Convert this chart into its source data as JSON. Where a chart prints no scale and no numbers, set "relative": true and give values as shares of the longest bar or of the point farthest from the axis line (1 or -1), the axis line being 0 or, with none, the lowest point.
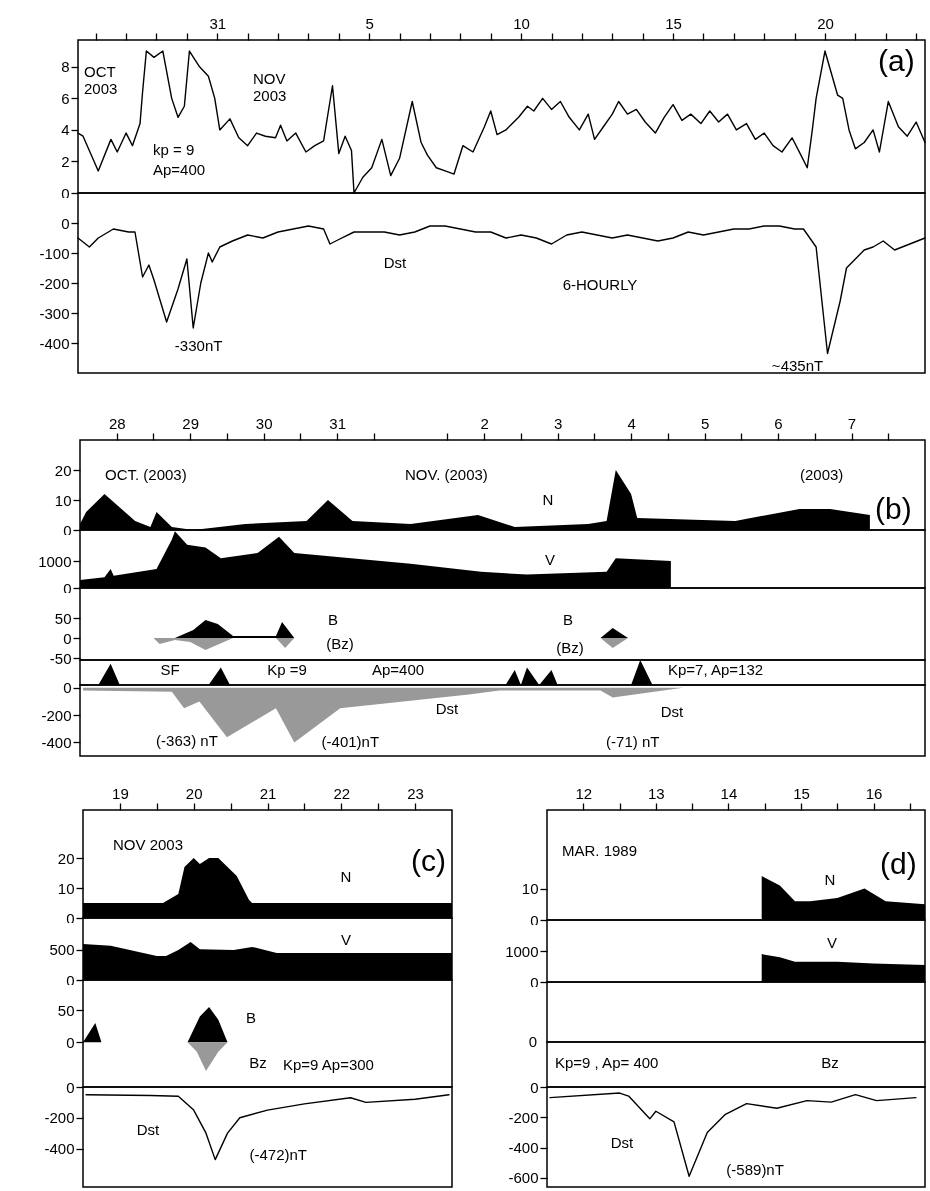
{
  "chart_data": [
    {
      "type": "line",
      "xlim": [
        "2003-10-26T10:00",
        "2003-11-23T07:00"
      ],
      "xticks": [
        {
          "value": "2003-10-27",
          "label": null
        },
        {
          "value": "2003-10-28",
          "label": null
        },
        {
          "value": "2003-10-29",
          "label": null
        },
        {
          "value": "2003-10-30",
          "label": null
        },
        {
          "value": "2003-10-31",
          "label": "31"
        },
        {
          "value": "2003-11-01",
          "label": null
        },
        {
          "value": "2003-11-02",
          "label": null
        },
        {
          "value": "2003-11-03",
          "label": null
        },
        {
          "value": "2003-11-04",
          "label": null
        },
        {
          "value": "2003-11-05",
          "label": "5"
        },
        {
          "value": "2003-11-06",
          "label": null
        },
        {
          "value": "2003-11-07",
          "label": null
        },
        {
          "value": "2003-11-08",
          "label": null
        },
        {
          "value": "2003-11-09",
          "label": null
        },
        {
          "value": "2003-11-10",
          "label": "10"
        },
        {
          "value": "2003-11-11",
          "label": null
        },
        {
          "value": "2003-11-12",
          "label": null
        },
        {
          "value": "2003-11-13",
          "label": null
        },
        {
          "value": "2003-11-14",
          "label": null
        },
        {
          "value": "2003-11-15",
          "label": "15"
        },
        {
          "value": "2003-11-16",
          "label": null
        },
        {
          "value": "2003-11-17",
          "label": null
        },
        {
          "value": "2003-11-18",
          "label": null
        },
        {
          "value": "2003-11-19",
          "label": null
        },
        {
          "value": "2003-11-20",
          "label": "20"
        },
        {
          "value": "2003-11-21",
          "label": null
        },
        {
          "value": "2003-11-22",
          "label": null
        },
        {
          "value": "2003-11-23",
          "label": null
        }
      ],
      "ylim": [
        0,
        9.7
      ],
      "yticks": [
        0,
        2,
        4,
        6,
        8
      ],
      "color": "#000000",
      "x": [
        "2003-10-26T10:00",
        "2003-10-26T14:00",
        "2003-10-27T02:00",
        "2003-10-27T12:00",
        "2003-10-27T17:00",
        "2003-10-28T00:00",
        "2003-10-28T05:00",
        "2003-10-28T11:00",
        "2003-10-28T13:00",
        "2003-10-28T16:00",
        "2003-10-28T22:00",
        "2003-10-29T05:00",
        "2003-10-29T12:00",
        "2003-10-29T17:00",
        "2003-10-29T22:00",
        "2003-10-30T02:00",
        "2003-10-30T10:00",
        "2003-10-30T17:00",
        "2003-10-30T22:00",
        "2003-10-31T02:00",
        "2003-10-31T10:00",
        "2003-10-31T17:00",
        "2003-11-01T00:00",
        "2003-11-01T07:00",
        "2003-11-01T14:00",
        "2003-11-01T22:00",
        "2003-11-02T02:00",
        "2003-11-02T07:00",
        "2003-11-02T14:00",
        "2003-11-02T22:00",
        "2003-11-03T05:00",
        "2003-11-03T12:00",
        "2003-11-03T19:00",
        "2003-11-04T00:00",
        "2003-11-04T05:00",
        "2003-11-04T10:00",
        "2003-11-04T12:00",
        "2003-11-04T19:00",
        "2003-11-05T02:00",
        "2003-11-05T10:00",
        "2003-11-05T17:00",
        "2003-11-06T00:00",
        "2003-11-06T10:00",
        "2003-11-06T17:00",
        "2003-11-06T22:00",
        "2003-11-07T05:00",
        "2003-11-07T12:00",
        "2003-11-07T19:00",
        "2003-11-08T02:00",
        "2003-11-08T10:00",
        "2003-11-08T19:00",
        "2003-11-09T00:00",
        "2003-11-09T05:00",
        "2003-11-09T12:00",
        "2003-11-09T22:00",
        "2003-11-10T05:00",
        "2003-11-10T10:00",
        "2003-11-10T17:00",
        "2003-11-11T00:00",
        "2003-11-11T07:00",
        "2003-11-11T14:00",
        "2003-11-11T22:00",
        "2003-11-12T05:00",
        "2003-11-12T10:00",
        "2003-11-12T17:00",
        "2003-11-13T00:00",
        "2003-11-13T05:00",
        "2003-11-13T12:00",
        "2003-11-13T19:00",
        "2003-11-14T02:00",
        "2003-11-14T10:00",
        "2003-11-14T17:00",
        "2003-11-15T00:00",
        "2003-11-15T07:00",
        "2003-11-15T14:00",
        "2003-11-15T22:00",
        "2003-11-16T05:00",
        "2003-11-16T12:00",
        "2003-11-16T19:00",
        "2003-11-17T02:00",
        "2003-11-17T10:00",
        "2003-11-17T17:00",
        "2003-11-18T00:00",
        "2003-11-18T07:00",
        "2003-11-18T14:00",
        "2003-11-18T22:00",
        "2003-11-19T05:00",
        "2003-11-19T10:00",
        "2003-11-19T14:00",
        "2003-11-19T17:00",
        "2003-11-20T00:00",
        "2003-11-20T10:00",
        "2003-11-20T14:00",
        "2003-11-20T19:00",
        "2003-11-21T00:00",
        "2003-11-21T07:00",
        "2003-11-21T14:00",
        "2003-11-21T19:00",
        "2003-11-22T02:00",
        "2003-11-22T10:00",
        "2003-11-22T17:00",
        "2003-11-23T00:00",
        "2003-11-23T07:00"
      ],
      "values": [
        3.8,
        3.6,
        1.4,
        3.4,
        2.6,
        3.8,
        3.0,
        4.4,
        6.4,
        9.0,
        8.6,
        9.0,
        6.0,
        4.8,
        5.5,
        9.0,
        8.0,
        7.4,
        6.0,
        4.0,
        4.7,
        3.5,
        3.0,
        3.8,
        3.6,
        3.5,
        4.3,
        3.3,
        3.8,
        2.6,
        3.0,
        3.3,
        6.8,
        2.5,
        3.6,
        2.7,
        0,
        1.0,
        1.6,
        3.4,
        1.1,
        2.2,
        5.8,
        3.2,
        2.4,
        1.6,
        1.4,
        1.2,
        3.0,
        2.6,
        4.2,
        5.2,
        3.7,
        4.0,
        4.8,
        5.5,
        5.2,
        6.0,
        5.3,
        5.8,
        4.8,
        4.0,
        5.0,
        3.4,
        4.2,
        5.0,
        5.8,
        5.0,
        5.3,
        4.5,
        3.8,
        4.8,
        5.6,
        4.6,
        5.0,
        4.4,
        5.2,
        4.5,
        5.0,
        4.0,
        4.4,
        3.4,
        3.8,
        3.0,
        2.6,
        3.5,
        2.4,
        1.6,
        4.0,
        6.0,
        9.0,
        6.2,
        6.0,
        4.0,
        2.8,
        3.2,
        4.0,
        2.6,
        5.8,
        4.2,
        3.6,
        4.5,
        3.2
      ],
      "annotations": [
        "OCT\n2003",
        "NOV\n2003",
        "kp = 9",
        "Ap=400",
        "(a)"
      ]
    },
    {
      "type": "line",
      "xlim": [
        "2003-10-26T10:00",
        "2003-11-23T07:00"
      ],
      "ylim": [
        -500,
        100
      ],
      "yticks": [
        0,
        -100,
        -200,
        -300,
        -400
      ],
      "tick_labels": "y",
      "color": "#000000",
      "x": [
        "2003-10-26T10:00",
        "2003-10-26T19:00",
        "2003-10-27T02:00",
        "2003-10-27T14:00",
        "2003-10-28T02:00",
        "2003-10-28T07:00",
        "2003-10-28T13:00",
        "2003-10-28T18:00",
        "2003-10-28T22:00",
        "2003-10-29T08:00",
        "2003-10-29T17:00",
        "2003-10-30T00:00",
        "2003-10-30T05:00",
        "2003-10-30T11:00",
        "2003-10-30T17:00",
        "2003-10-30T20:00",
        "2003-10-31T02:00",
        "2003-10-31T12:00",
        "2003-11-01T00:00",
        "2003-11-01T12:00",
        "2003-11-02T00:00",
        "2003-11-02T12:00",
        "2003-11-03T00:00",
        "2003-11-03T12:00",
        "2003-11-03T17:00",
        "2003-11-04T00:00",
        "2003-11-04T12:00",
        "2003-11-05T12:00",
        "2003-11-06T00:00",
        "2003-11-06T12:00",
        "2003-11-07T00:00",
        "2003-11-07T12:00",
        "2003-11-08T00:00",
        "2003-11-08T12:00",
        "2003-11-09T00:00",
        "2003-11-09T12:00",
        "2003-11-10T00:00",
        "2003-11-10T12:00",
        "2003-11-11T00:00",
        "2003-11-11T12:00",
        "2003-11-12T00:00",
        "2003-11-12T12:00",
        "2003-11-13T00:00",
        "2003-11-13T12:00",
        "2003-11-14T00:00",
        "2003-11-14T12:00",
        "2003-11-15T00:00",
        "2003-11-15T12:00",
        "2003-11-16T00:00",
        "2003-11-16T12:00",
        "2003-11-17T00:00",
        "2003-11-17T12:00",
        "2003-11-18T00:00",
        "2003-11-18T12:00",
        "2003-11-19T00:00",
        "2003-11-19T07:00",
        "2003-11-19T17:00",
        "2003-11-20T02:00",
        "2003-11-20T12:00",
        "2003-11-20T17:00",
        "2003-11-21T00:00",
        "2003-11-21T07:00",
        "2003-11-21T14:00",
        "2003-11-21T22:00",
        "2003-11-22T07:00",
        "2003-11-22T19:00",
        "2003-11-23T07:00"
      ],
      "values": [
        -50,
        -80,
        -50,
        -20,
        -30,
        -30,
        -180,
        -140,
        -190,
        -330,
        -220,
        -120,
        -350,
        -200,
        -100,
        -130,
        -80,
        -60,
        -40,
        -50,
        -30,
        -20,
        -10,
        -20,
        -70,
        -55,
        -30,
        -30,
        -40,
        -30,
        -10,
        -10,
        -20,
        -30,
        -30,
        -50,
        -40,
        -50,
        -70,
        -40,
        -30,
        -40,
        -50,
        -40,
        -50,
        -60,
        -50,
        -30,
        -40,
        -30,
        -20,
        -20,
        -10,
        -10,
        -20,
        -20,
        -80,
        -435,
        -260,
        -150,
        -120,
        -90,
        -80,
        -60,
        -90,
        -70,
        -50
      ],
      "annotations": [
        "Dst",
        "6-HOURLY",
        {
          "text": "-330nT",
          "x": "2003-10-29T08:00",
          "y": -330
        },
        {
          "text": "~435nT",
          "x": "2003-11-20T02:00",
          "y": -435
        }
      ]
    },
    {
      "type": "area",
      "xlim": [
        "2003-10-28T00:00",
        "2003-11-08T12:00"
      ],
      "xticks": [
        {
          "value": "2003-10-28T12:00",
          "label": "28"
        },
        {
          "value": "2003-10-29",
          "label": null
        },
        {
          "value": "2003-10-29T12:00",
          "label": "29"
        },
        {
          "value": "2003-10-30",
          "label": null
        },
        {
          "value": "2003-10-30T12:00",
          "label": "30"
        },
        {
          "value": "2003-10-31",
          "label": null
        },
        {
          "value": "2003-10-31T12:00",
          "label": "31"
        },
        {
          "value": "2003-11-01",
          "label": null
        },
        {
          "value": "2003-11-02",
          "label": null
        },
        {
          "value": "2003-11-02T12:00",
          "label": "2"
        },
        {
          "value": "2003-11-03",
          "label": null
        },
        {
          "value": "2003-11-03T12:00",
          "label": "3"
        },
        {
          "value": "2003-11-04",
          "label": null
        },
        {
          "value": "2003-11-04T12:00",
          "label": "4"
        },
        {
          "value": "2003-11-05",
          "label": null
        },
        {
          "value": "2003-11-05T12:00",
          "label": "5"
        },
        {
          "value": "2003-11-06",
          "label": null
        },
        {
          "value": "2003-11-06T12:00",
          "label": "6"
        },
        {
          "value": "2003-11-07",
          "label": null
        },
        {
          "value": "2003-11-07T12:00",
          "label": "7"
        },
        {
          "value": "2003-11-08",
          "label": null
        }
      ],
      "ylim": [
        0,
        30
      ],
      "yticks": [
        0,
        10,
        20
      ],
      "color": "#000000",
      "x": [
        "2003-10-28T00:00",
        "2003-10-28T02:00",
        "2003-10-28T08:00",
        "2003-10-28T18:00",
        "2003-10-28T23:00",
        "2003-10-29T01:00",
        "2003-10-29T06:00",
        "2003-10-29T13:00",
        "2003-10-30T06:00",
        "2003-10-31T02:00",
        "2003-10-31T09:00",
        "2003-10-31T17:00",
        "2003-11-01T12:00",
        "2003-11-02T10:00",
        "2003-11-02T22:00",
        "2003-11-03T22:00",
        "2003-11-04T04:00",
        "2003-11-04T07:00",
        "2003-11-04T12:00",
        "2003-11-04T14:00",
        "2003-11-05T22:00",
        "2003-11-06T19:00",
        "2003-11-07T05:00",
        "2003-11-07T18:00"
      ],
      "values": [
        2,
        6,
        12,
        3,
        1,
        6,
        1,
        0,
        2,
        3,
        10,
        3,
        2,
        5,
        1,
        2,
        3,
        20,
        12,
        4,
        3,
        7,
        7,
        5
      ],
      "annotations": [
        "OCT. (2003)",
        "NOV. (2003)",
        "(2003)",
        "N",
        "(b)"
      ]
    },
    {
      "type": "area",
      "xlim": [
        "2003-10-28T00:00",
        "2003-11-08T12:00"
      ],
      "ylim": [
        0,
        2150
      ],
      "yticks": [
        0,
        1000
      ],
      "tick_labels": "y",
      "color": "#000000",
      "x": [
        "2003-10-28T00:00",
        "2003-10-28T08:00",
        "2003-10-28T10:00",
        "2003-10-28T11:00",
        "2003-10-29T01:00",
        "2003-10-29T06:00",
        "2003-10-29T07:00",
        "2003-10-29T11:00",
        "2003-10-29T17:00",
        "2003-10-29T22:00",
        "2003-10-30T10:00",
        "2003-10-30T17:00",
        "2003-10-30T22:00",
        "2003-11-01T12:00",
        "2003-11-02T11:00",
        "2003-11-03T02:00",
        "2003-11-04T04:00",
        "2003-11-04T07:00",
        "2003-11-05T01:00"
      ],
      "values": [
        300,
        400,
        700,
        450,
        700,
        1800,
        2100,
        1600,
        1500,
        1100,
        1300,
        1900,
        1300,
        900,
        600,
        500,
        600,
        1100,
        1000
      ],
      "annotations": [
        "V"
      ]
    },
    {
      "type": "area",
      "xlim": [
        "2003-10-28T00:00",
        "2003-11-08T12:00"
      ],
      "ylim": [
        -55,
        125
      ],
      "yticks": [
        -50,
        0,
        50
      ],
      "tick_labels": "y",
      "series": [
        {
          "color": "#000000",
          "x": [
            "2003-10-29T07:00",
            "2003-10-29T13:00",
            "2003-10-29T17:00",
            "2003-10-29T21:00",
            "2003-10-30T02:00",
            "2003-10-30T16:00",
            "2003-10-30T18:00",
            "2003-10-30T22:00",
            "2003-11-04T02:00",
            "2003-11-04T06:00",
            "2003-11-04T11:00"
          ],
          "values": [
            0,
            20,
            45,
            35,
            5,
            5,
            40,
            0,
            0,
            25,
            0
          ]
        },
        {
          "color": "#999999",
          "x": [
            "2003-10-29T00:00",
            "2003-10-29T02:00",
            "2003-10-29T07:00",
            "2003-10-29T12:00",
            "2003-10-29T17:00",
            "2003-10-29T23:00",
            "2003-10-30T02:00",
            "2003-10-30T16:00",
            "2003-10-30T19:00",
            "2003-10-30T22:00",
            "2003-11-04T02:00",
            "2003-11-04T06:00",
            "2003-11-04T11:00"
          ],
          "values": [
            0,
            -15,
            -5,
            -10,
            -30,
            -10,
            0,
            0,
            -25,
            0,
            0,
            -25,
            0
          ]
        }
      ],
      "annotations": [
        "B",
        "(Bz)",
        "B",
        "(Bz)"
      ]
    },
    {
      "type": "area",
      "relative": true,
      "xlim": [
        "2003-10-28T00:00",
        "2003-11-08T12:00"
      ],
      "tick_labels": false,
      "color": "#000000",
      "x": [
        "2003-10-28T06:00",
        "2003-10-28T10:00",
        "2003-10-28T13:00",
        "2003-10-29T18:00",
        "2003-10-29T22:00",
        "2003-10-30T01:00",
        "2003-11-02T19:00",
        "2003-11-02T22:00",
        "2003-11-03T00:00",
        "2003-11-03T02:00",
        "2003-11-03T06:00",
        "2003-11-03T10:00",
        "2003-11-03T12:00",
        "2003-11-04T12:00",
        "2003-11-04T15:00",
        "2003-11-04T19:00"
      ],
      "values": [
        0,
        0.85,
        0,
        0,
        0.7,
        0,
        0,
        0.6,
        0,
        0.7,
        0,
        0.6,
        0,
        0,
        1,
        0
      ],
      "annotations": [
        "SF",
        "Kp =9",
        "Ap=400",
        "Kp=7, Ap=132"
      ]
    },
    {
      "type": "area",
      "xlim": [
        "2003-10-28T00:00",
        "2003-11-08T12:00"
      ],
      "ylim": [
        -500,
        20
      ],
      "yticks": [
        0,
        -200,
        -400
      ],
      "tick_labels": "y",
      "color": "#999999",
      "x": [
        "2003-10-28T01:00",
        "2003-10-29T06:00",
        "2003-10-29T10:00",
        "2003-10-29T15:00",
        "2003-10-30T00:00",
        "2003-10-30T16:00",
        "2003-10-30T22:00",
        "2003-10-31T13:00",
        "2003-11-02T07:00",
        "2003-11-02T17:00",
        "2003-11-04T02:00",
        "2003-11-04T06:00",
        "2003-11-05T05:00"
      ],
      "values": [
        -20,
        -30,
        -150,
        -100,
        -363,
        -150,
        -401,
        -150,
        -50,
        -20,
        -20,
        -71,
        0
      ],
      "annotations": [
        "Dst",
        "Dst",
        {
          "text": "(-363) nT",
          "x": "2003-10-30T00:00",
          "y": -363
        },
        {
          "text": "(-401)nT",
          "x": "2003-10-30T22:00",
          "y": -401
        },
        {
          "text": "(-71) nT",
          "x": "2003-11-04T06:00",
          "y": -71
        }
      ]
    },
    {
      "type": "area",
      "xlim": [
        "2003-11-19T00:00",
        "2003-11-24T00:00"
      ],
      "xticks": [
        {
          "value": "2003-11-19T12:00",
          "label": "19"
        },
        {
          "value": "2003-11-20",
          "label": null
        },
        {
          "value": "2003-11-20T12:00",
          "label": "20"
        },
        {
          "value": "2003-11-21",
          "label": null
        },
        {
          "value": "2003-11-21T12:00",
          "label": "21"
        },
        {
          "value": "2003-11-22",
          "label": null
        },
        {
          "value": "2003-11-22T12:00",
          "label": "22"
        },
        {
          "value": "2003-11-23",
          "label": null
        },
        {
          "value": "2003-11-23T12:00",
          "label": "23"
        }
      ],
      "ylim": [
        0,
        36
      ],
      "yticks": [
        0,
        10,
        20
      ],
      "color": "#000000",
      "x": [
        "2003-11-19T00:00",
        "2003-11-20T02:00",
        "2003-11-20T07:00",
        "2003-11-20T09:00",
        "2003-11-20T12:00",
        "2003-11-20T14:00",
        "2003-11-20T17:00",
        "2003-11-20T20:00",
        "2003-11-21T02:00",
        "2003-11-21T06:00",
        "2003-11-21T07:00",
        "2003-11-24T00:00"
      ],
      "values": [
        5,
        5,
        8,
        17,
        20,
        18,
        20,
        20,
        14,
        6,
        5,
        5
      ],
      "annotations": [
        "NOV 2003",
        "N",
        "(c)"
      ]
    },
    {
      "type": "area",
      "xlim": [
        "2003-11-19T00:00",
        "2003-11-24T00:00"
      ],
      "ylim": [
        0,
        1030
      ],
      "yticks": [
        0,
        500
      ],
      "tick_labels": "y",
      "color": "#000000",
      "x": [
        "2003-11-19T00:00",
        "2003-11-19T09:00",
        "2003-11-20T00:00",
        "2003-11-20T03:00",
        "2003-11-20T07:00",
        "2003-11-20T11:00",
        "2003-11-20T14:00",
        "2003-11-21T01:00",
        "2003-11-21T07:00",
        "2003-11-21T15:00",
        "2003-11-24T00:00"
      ],
      "values": [
        600,
        570,
        400,
        400,
        500,
        630,
        510,
        500,
        550,
        450,
        450
      ],
      "annotations": [
        "V"
      ]
    },
    {
      "type": "area",
      "xlim": [
        "2003-11-19T00:00",
        "2003-11-24T00:00"
      ],
      "ylim": [
        -70,
        97
      ],
      "yticks": [
        0,
        50
      ],
      "tick_labels": "y",
      "series": [
        {
          "color": "#000000",
          "x": [
            "2003-11-19T00:00",
            "2003-11-19T04:00",
            "2003-11-19T06:00",
            "2003-11-20T10:00",
            "2003-11-20T14:00",
            "2003-11-20T17:00",
            "2003-11-20T20:00",
            "2003-11-20T23:00"
          ],
          "values": [
            0,
            30,
            0,
            0,
            40,
            55,
            35,
            0
          ]
        },
        {
          "color": "#999999",
          "x": [
            "2003-11-20T10:00",
            "2003-11-20T13:00",
            "2003-11-20T16:00",
            "2003-11-20T20:00",
            "2003-11-20T23:00"
          ],
          "values": [
            0,
            -15,
            -45,
            -15,
            0
          ]
        }
      ],
      "annotations": [
        "B",
        "Bz",
        "Kp=9 Ap=300"
      ]
    },
    {
      "type": "line",
      "xlim": [
        "2003-11-19T00:00",
        "2003-11-24T00:00"
      ],
      "ylim": [
        -650,
        0
      ],
      "yticks": [
        0,
        -200,
        -400
      ],
      "tick_labels": "y",
      "color": "#000000",
      "x": [
        "2003-11-19T01:00",
        "2003-11-19T22:00",
        "2003-11-20T07:00",
        "2003-11-20T12:00",
        "2003-11-20T16:00",
        "2003-11-20T19:00",
        "2003-11-20T23:00",
        "2003-11-21T03:00",
        "2003-11-21T12:00",
        "2003-11-22T00:00",
        "2003-11-22T15:00",
        "2003-11-22T20:00",
        "2003-11-23T12:00",
        "2003-11-23T23:00"
      ],
      "values": [
        -50,
        -55,
        -60,
        -150,
        -300,
        -472,
        -300,
        -200,
        -150,
        -110,
        -70,
        -100,
        -80,
        -50
      ],
      "annotations": [
        "Dst",
        {
          "text": "(-472)nT",
          "x": "2003-11-20T19:00",
          "y": -472
        }
      ]
    },
    {
      "type": "area",
      "xlim": [
        "1989-03-12T00:00",
        "1989-03-17T05:00"
      ],
      "xticks": [
        {
          "value": "1989-03-12T12:00",
          "label": "12"
        },
        {
          "value": "1989-03-13",
          "label": null
        },
        {
          "value": "1989-03-13T12:00",
          "label": "13"
        },
        {
          "value": "1989-03-14",
          "label": null
        },
        {
          "value": "1989-03-14T12:00",
          "label": "14"
        },
        {
          "value": "1989-03-15",
          "label": null
        },
        {
          "value": "1989-03-15T12:00",
          "label": "15"
        },
        {
          "value": "1989-03-16",
          "label": null
        },
        {
          "value": "1989-03-16T12:00",
          "label": "16"
        },
        {
          "value": "1989-03-17",
          "label": null
        }
      ],
      "ylim": [
        0,
        35
      ],
      "yticks": [
        0,
        10
      ],
      "color": "#000000",
      "x": [
        "1989-03-14T23:00",
        "1989-03-15T05:00",
        "1989-03-15T10:00",
        "1989-03-15T15:00",
        "1989-03-16T00:00",
        "1989-03-16T09:00",
        "1989-03-16T16:00",
        "1989-03-17T05:00"
      ],
      "values": [
        14,
        11,
        6,
        6,
        7,
        10,
        6,
        5
      ],
      "annotations": [
        "MAR. 1989",
        "N",
        "(d)"
      ]
    },
    {
      "type": "area",
      "xlim": [
        "1989-03-12T00:00",
        "1989-03-17T05:00"
      ],
      "ylim": [
        0,
        2000
      ],
      "yticks": [
        0,
        1000
      ],
      "tick_labels": "y",
      "color": "#000000",
      "x": [
        "1989-03-14T23:00",
        "1989-03-15T05:00",
        "1989-03-15T10:00",
        "1989-03-16T00:00",
        "1989-03-16T12:00",
        "1989-03-17T05:00"
      ],
      "values": [
        900,
        800,
        650,
        650,
        600,
        550
      ],
      "annotations": [
        "V"
      ]
    },
    {
      "type": "other",
      "annotations": [
        "0"
      ]
    },
    {
      "type": "other",
      "annotations": [
        "Kp=9 , Ap= 400",
        "Bz"
      ]
    },
    {
      "type": "line",
      "xlim": [
        "1989-03-12T00:00",
        "1989-03-17T05:00"
      ],
      "ylim": [
        -660,
        0
      ],
      "yticks": [
        0,
        -200,
        -400,
        -600
      ],
      "tick_labels": "y",
      "color": "#000000",
      "x": [
        "1989-03-12T01:00",
        "1989-03-13T00:00",
        "1989-03-13T03:00",
        "1989-03-13T10:00",
        "1989-03-13T12:00",
        "1989-03-13T18:00",
        "1989-03-13T23:00",
        "1989-03-14T05:00",
        "1989-03-14T11:00",
        "1989-03-14T18:00",
        "1989-03-15T04:00",
        "1989-03-15T14:00",
        "1989-03-15T22:00",
        "1989-03-16T06:00",
        "1989-03-16T13:00",
        "1989-03-17T02:00"
      ],
      "values": [
        -70,
        -40,
        -60,
        -210,
        -160,
        -230,
        -589,
        -300,
        -180,
        -110,
        -140,
        -90,
        -100,
        -50,
        -90,
        -70
      ],
      "annotations": [
        "Dst",
        {
          "text": "(-589)nT",
          "x": "1989-03-13T23:00",
          "y": -589
        }
      ]
    }
  ]
}
